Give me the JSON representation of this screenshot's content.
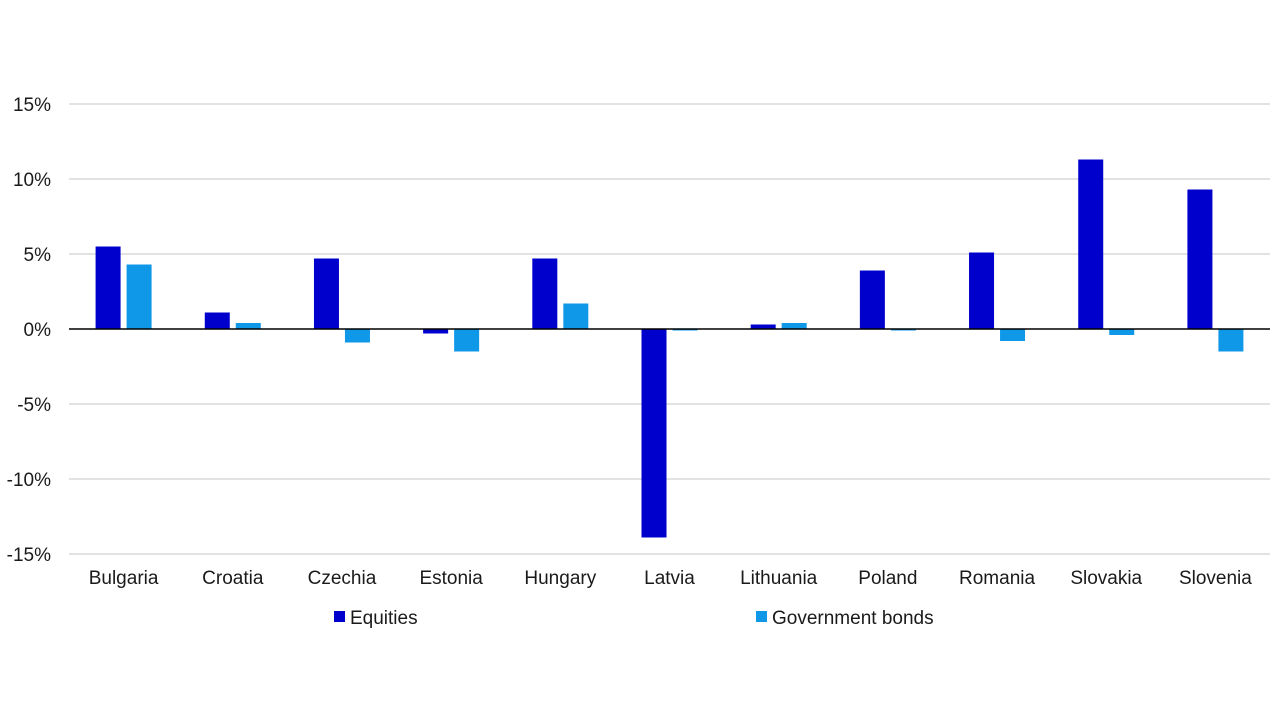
{
  "chart_data": {
    "type": "bar",
    "title": "",
    "xlabel": "",
    "ylabel": "",
    "categories": [
      "Bulgaria",
      "Croatia",
      "Czechia",
      "Estonia",
      "Hungary",
      "Latvia",
      "Lithuania",
      "Poland",
      "Romania",
      "Slovakia",
      "Slovenia"
    ],
    "series": [
      {
        "name": "Equities",
        "color": "#0000cd",
        "values": [
          5.5,
          1.1,
          4.7,
          -0.3,
          4.7,
          -13.9,
          0.3,
          3.9,
          5.1,
          11.3,
          9.3
        ]
      },
      {
        "name": "Government bonds",
        "color": "#0f97e8",
        "values": [
          4.3,
          0.4,
          -0.9,
          -1.5,
          1.7,
          -0.1,
          0.4,
          -0.1,
          -0.8,
          -0.4,
          -1.5
        ]
      }
    ],
    "ylim": [
      -15,
      15
    ],
    "yticks": [
      15,
      10,
      5,
      0,
      -5,
      -10,
      -15
    ],
    "ytick_labels": [
      "15%",
      "10%",
      "5%",
      "0%",
      "-5%",
      "-10%",
      "-15%"
    ],
    "grid": true,
    "legend_position": "bottom"
  }
}
